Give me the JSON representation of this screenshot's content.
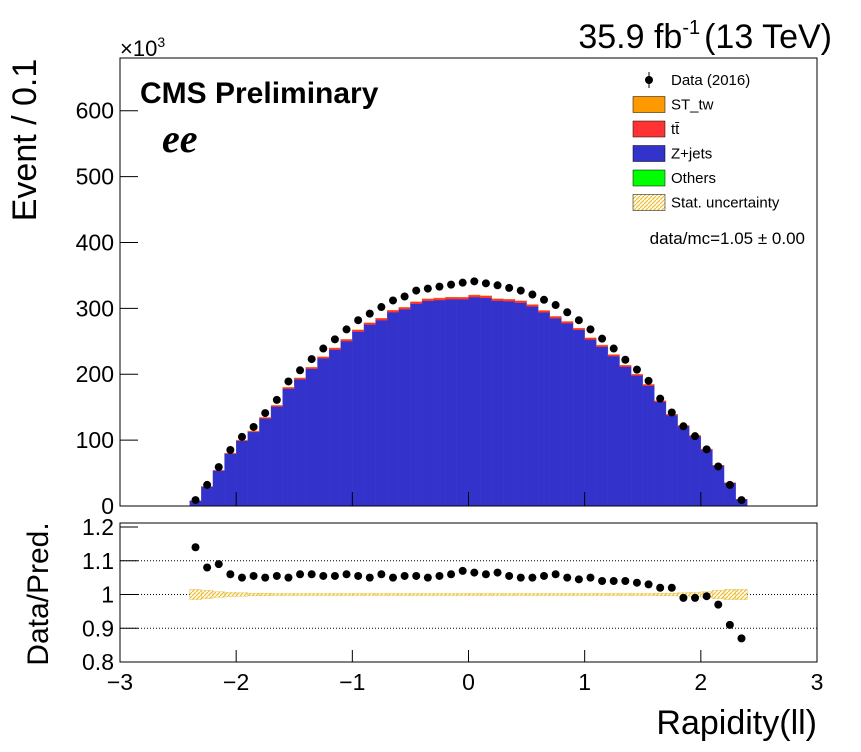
{
  "chart_data": [
    {
      "type": "stacked-histogram",
      "lumi": "35.9 fb",
      "lumi_exponent": "-1",
      "energy": "(13 TeV)",
      "ylabel": "Event / 0.1",
      "y_multiplier": "×10",
      "y_multiplier_exponent": "3",
      "annotations": [
        "CMS Preliminary",
        "ee",
        "data/mc=1.05 ± 0.00"
      ],
      "bins": [
        -2.4,
        -2.3,
        -2.2,
        -2.1,
        -2.0,
        -1.9,
        -1.8,
        -1.7,
        -1.6,
        -1.5,
        -1.4,
        -1.3,
        -1.2,
        -1.1,
        -1.0,
        -0.9,
        -0.8,
        -0.7,
        -0.6,
        -0.5,
        -0.4,
        -0.3,
        -0.2,
        -0.1,
        0.0,
        0.1,
        0.2,
        0.3,
        0.4,
        0.5,
        0.6,
        0.7,
        0.8,
        0.9,
        1.0,
        1.1,
        1.2,
        1.3,
        1.4,
        1.5,
        1.6,
        1.7,
        1.8,
        1.9,
        2.0,
        2.1,
        2.2,
        2.3,
        2.4
      ],
      "data": {
        "name": "Data (2016)",
        "color": "#000000",
        "values": [
          9,
          32,
          59,
          85,
          105,
          120,
          141,
          161,
          189,
          206,
          223,
          239,
          253,
          268,
          282,
          292,
          302,
          312,
          318,
          327,
          330,
          333,
          336,
          339,
          341,
          338,
          335,
          331,
          327,
          321,
          313,
          305,
          294,
          282,
          268,
          254,
          239,
          222,
          207,
          190,
          163,
          142,
          121,
          106,
          86,
          60,
          32,
          9
        ]
      },
      "series": [
        {
          "name": "Z+jets",
          "color": "#3333cc",
          "values": [
            7.8,
            29.3,
            53.5,
            79.3,
            98.9,
            112.4,
            132.8,
            150.9,
            178.1,
            192.3,
            208.2,
            224.2,
            237.4,
            250.3,
            264.7,
            275.4,
            282.1,
            294.2,
            298.5,
            307,
            311.3,
            312.6,
            313.9,
            313.7,
            317.1,
            315.8,
            311.6,
            310.7,
            308.4,
            302.8,
            293.8,
            284.9,
            277.3,
            267.3,
            252.7,
            241.8,
            227.5,
            211.3,
            198,
            182.6,
            158.1,
            137.7,
            120.9,
            106,
            85.5,
            61.3,
            34.9,
            10.2
          ]
        },
        {
          "name": "tt̄",
          "color": "#ff3333",
          "values": [
            0.1,
            0.3,
            0.6,
            0.9,
            1.1,
            1.3,
            1.5,
            1.7,
            1.9,
            2.0,
            2.2,
            2.3,
            2.4,
            2.5,
            2.6,
            2.7,
            2.8,
            2.9,
            2.9,
            3.0,
            3.0,
            3.0,
            3.1,
            3.1,
            3.1,
            3.1,
            3.0,
            3.0,
            3.0,
            2.9,
            2.9,
            2.8,
            2.7,
            2.6,
            2.5,
            2.4,
            2.3,
            2.2,
            2.0,
            1.9,
            1.7,
            1.5,
            1.3,
            1.1,
            0.9,
            0.6,
            0.3,
            0.1
          ]
        },
        {
          "name": "ST_tw",
          "color": "#ff9900",
          "values": [
            0,
            0,
            0,
            0.1,
            0.1,
            0.1,
            0.1,
            0.1,
            0.1,
            0.1,
            0.1,
            0.1,
            0.1,
            0.1,
            0.1,
            0.1,
            0.1,
            0.1,
            0.1,
            0.1,
            0.1,
            0.1,
            0.1,
            0.1,
            0.1,
            0.1,
            0.1,
            0.1,
            0.1,
            0.1,
            0.1,
            0.1,
            0.1,
            0.1,
            0.1,
            0.1,
            0.1,
            0.1,
            0.1,
            0.1,
            0.1,
            0.1,
            0.1,
            0.1,
            0.1,
            0,
            0,
            0
          ]
        },
        {
          "name": "Others",
          "color": "#00ff00",
          "values": [
            0,
            0,
            0,
            0,
            0,
            0,
            0,
            0,
            0,
            0,
            0,
            0,
            0,
            0,
            0,
            0,
            0,
            0,
            0,
            0,
            0,
            0,
            0,
            0,
            0,
            0,
            0,
            0,
            0,
            0,
            0,
            0,
            0,
            0,
            0,
            0,
            0,
            0,
            0,
            0,
            0,
            0,
            0,
            0,
            0,
            0,
            0,
            0
          ]
        }
      ],
      "legend_order": [
        2,
        1,
        0,
        3
      ],
      "uncertainty_name": "Stat. uncertainty",
      "xlim": [
        -3,
        3
      ],
      "ylim": [
        0,
        680
      ],
      "yticks": [
        0,
        100,
        200,
        300,
        400,
        500,
        600
      ]
    },
    {
      "type": "ratio",
      "ylabel": "Data/Pred.",
      "xlabel": "Rapidity(ll)",
      "values": [
        1.14,
        1.08,
        1.09,
        1.06,
        1.05,
        1.055,
        1.05,
        1.055,
        1.05,
        1.06,
        1.06,
        1.055,
        1.055,
        1.06,
        1.055,
        1.05,
        1.06,
        1.05,
        1.055,
        1.055,
        1.05,
        1.055,
        1.06,
        1.07,
        1.065,
        1.06,
        1.065,
        1.055,
        1.05,
        1.05,
        1.055,
        1.06,
        1.05,
        1.045,
        1.05,
        1.04,
        1.04,
        1.04,
        1.035,
        1.03,
        1.02,
        1.02,
        0.99,
        0.99,
        0.995,
        0.97,
        0.91,
        0.87
      ],
      "errors": [
        0.015,
        0.012,
        0.008,
        0.006,
        0.005,
        0.004,
        0.004,
        0.003,
        0.003,
        0.003,
        0.003,
        0.003,
        0.003,
        0.003,
        0.003,
        0.003,
        0.003,
        0.003,
        0.003,
        0.003,
        0.003,
        0.003,
        0.003,
        0.003,
        0.003,
        0.003,
        0.003,
        0.003,
        0.003,
        0.003,
        0.003,
        0.003,
        0.003,
        0.003,
        0.003,
        0.003,
        0.003,
        0.003,
        0.003,
        0.003,
        0.004,
        0.004,
        0.005,
        0.006,
        0.008,
        0.012,
        0.015,
        0.015
      ],
      "band_color": "#e8b830",
      "xlim": [
        -3,
        3
      ],
      "xticks": [
        {
          "value": -3,
          "label": "−3"
        },
        {
          "value": -2,
          "label": "−2"
        },
        {
          "value": -1,
          "label": "−1"
        },
        0,
        1,
        2,
        3
      ],
      "ylim": [
        0.8,
        1.2
      ],
      "yticks": [
        0.8,
        0.9,
        1,
        1.1,
        1.2
      ],
      "grid_values": [
        0.9,
        1,
        1.1
      ]
    }
  ]
}
